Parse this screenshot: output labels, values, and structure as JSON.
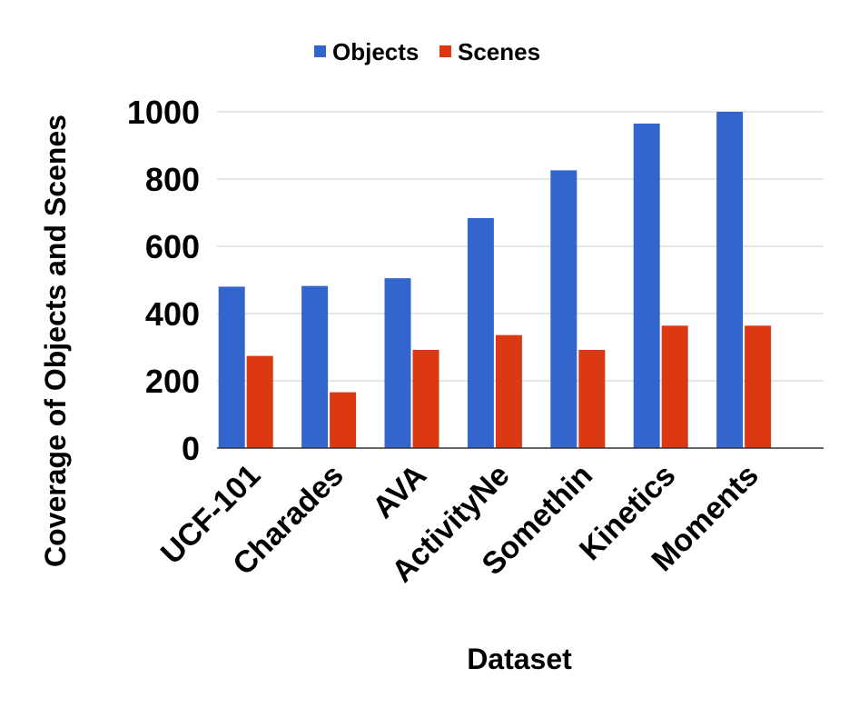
{
  "chart_data": {
    "type": "bar",
    "xlabel": "Dataset",
    "ylabel": "Coverage of Objects and Scenes",
    "ylim": [
      0,
      1000
    ],
    "yticks": [
      "0",
      "200",
      "400",
      "600",
      "800",
      "1000"
    ],
    "ytick_values": [
      0,
      200,
      400,
      600,
      800,
      1000
    ],
    "grid": true,
    "legend_position": "top-center",
    "categories": [
      "UCF-101",
      "Charades",
      "AVA",
      "ActivityNe",
      "Somethin",
      "Kinetics",
      "Moments"
    ],
    "series": [
      {
        "name": "Objects",
        "color": "#3366cc",
        "values": [
          480,
          482,
          505,
          684,
          826,
          965,
          1000
        ]
      },
      {
        "name": "Scenes",
        "color": "#dc3912",
        "values": [
          274,
          166,
          292,
          336,
          292,
          364,
          364
        ]
      }
    ]
  }
}
